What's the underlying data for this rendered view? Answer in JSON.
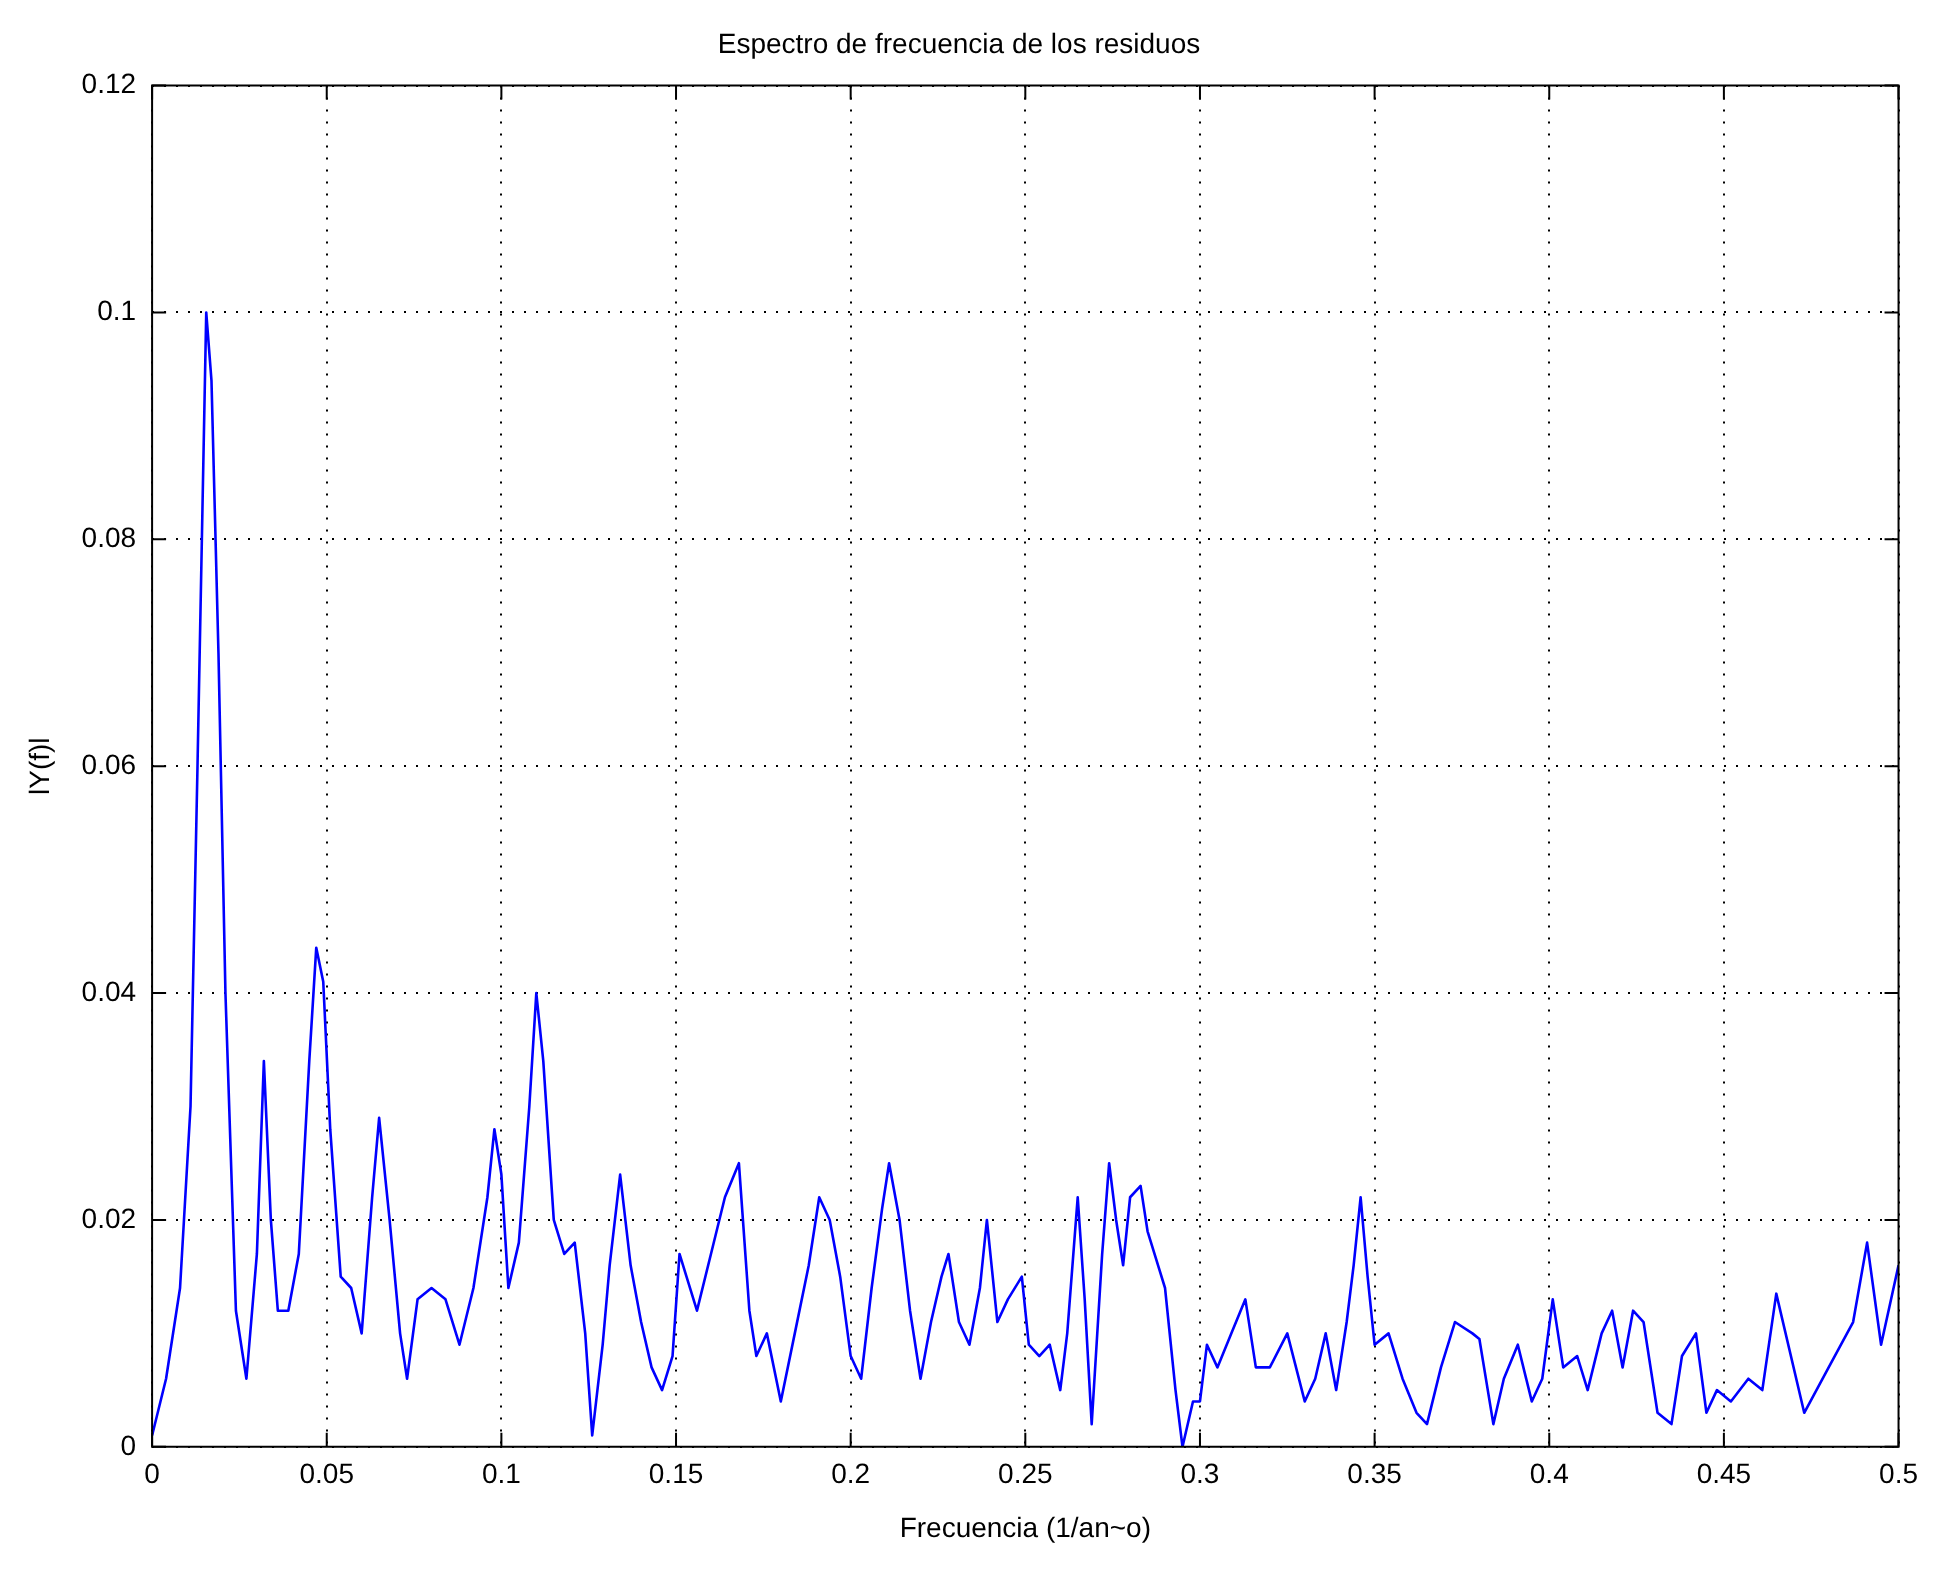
{
  "chart_data": {
    "type": "line",
    "title": "Espectro de frecuencia de los residuos",
    "xlabel": "Frecuencia (1/an~o)",
    "ylabel": "lY(f)l",
    "series": [
      {
        "color": "#0000ff",
        "x": [
          0,
          0.004,
          0.008,
          0.011,
          0.013,
          0.0155,
          0.017,
          0.019,
          0.021,
          0.024,
          0.027,
          0.03,
          0.032,
          0.034,
          0.036,
          0.039,
          0.042,
          0.045,
          0.047,
          0.049,
          0.051,
          0.054,
          0.057,
          0.06,
          0.063,
          0.065,
          0.068,
          0.071,
          0.073,
          0.076,
          0.08,
          0.084,
          0.088,
          0.092,
          0.096,
          0.098,
          0.1,
          0.102,
          0.105,
          0.108,
          0.11,
          0.112,
          0.115,
          0.118,
          0.121,
          0.124,
          0.126,
          0.129,
          0.131,
          0.134,
          0.137,
          0.14,
          0.143,
          0.146,
          0.149,
          0.151,
          0.153,
          0.156,
          0.16,
          0.164,
          0.168,
          0.171,
          0.173,
          0.176,
          0.18,
          0.184,
          0.188,
          0.191,
          0.194,
          0.197,
          0.2,
          0.203,
          0.206,
          0.209,
          0.211,
          0.214,
          0.217,
          0.22,
          0.223,
          0.226,
          0.228,
          0.231,
          0.234,
          0.237,
          0.239,
          0.242,
          0.245,
          0.249,
          0.251,
          0.254,
          0.257,
          0.26,
          0.262,
          0.265,
          0.267,
          0.269,
          0.272,
          0.274,
          0.276,
          0.278,
          0.28,
          0.283,
          0.285,
          0.29,
          0.293,
          0.295,
          0.298,
          0.3,
          0.302,
          0.305,
          0.309,
          0.313,
          0.316,
          0.32,
          0.325,
          0.33,
          0.333,
          0.336,
          0.339,
          0.342,
          0.344,
          0.346,
          0.348,
          0.35,
          0.354,
          0.358,
          0.362,
          0.365,
          0.369,
          0.373,
          0.378,
          0.38,
          0.384,
          0.387,
          0.391,
          0.395,
          0.398,
          0.401,
          0.404,
          0.408,
          0.411,
          0.415,
          0.418,
          0.421,
          0.424,
          0.427,
          0.431,
          0.435,
          0.438,
          0.442,
          0.445,
          0.448,
          0.452,
          0.457,
          0.461,
          0.465,
          0.473,
          0.48,
          0.487,
          0.491,
          0.495,
          0.5
        ],
        "values": [
          0.001,
          0.006,
          0.014,
          0.03,
          0.06,
          0.1,
          0.094,
          0.07,
          0.04,
          0.012,
          0.006,
          0.017,
          0.034,
          0.02,
          0.012,
          0.012,
          0.017,
          0.034,
          0.044,
          0.041,
          0.028,
          0.015,
          0.014,
          0.01,
          0.022,
          0.029,
          0.02,
          0.01,
          0.006,
          0.013,
          0.014,
          0.013,
          0.009,
          0.014,
          0.022,
          0.028,
          0.024,
          0.014,
          0.018,
          0.03,
          0.04,
          0.034,
          0.02,
          0.017,
          0.018,
          0.01,
          0.001,
          0.009,
          0.016,
          0.024,
          0.016,
          0.011,
          0.007,
          0.005,
          0.008,
          0.017,
          0.015,
          0.012,
          0.017,
          0.022,
          0.025,
          0.012,
          0.008,
          0.01,
          0.004,
          0.01,
          0.016,
          0.022,
          0.02,
          0.015,
          0.008,
          0.006,
          0.014,
          0.021,
          0.025,
          0.02,
          0.012,
          0.006,
          0.011,
          0.015,
          0.017,
          0.011,
          0.009,
          0.014,
          0.02,
          0.011,
          0.013,
          0.015,
          0.009,
          0.008,
          0.009,
          0.005,
          0.01,
          0.022,
          0.013,
          0.002,
          0.017,
          0.025,
          0.02,
          0.016,
          0.022,
          0.023,
          0.019,
          0.014,
          0.005,
          0,
          0.004,
          0.004,
          0.009,
          0.007,
          0.01,
          0.013,
          0.007,
          0.007,
          0.01,
          0.004,
          0.006,
          0.01,
          0.005,
          0.011,
          0.016,
          0.022,
          0.015,
          0.009,
          0.01,
          0.006,
          0.003,
          0.002,
          0.007,
          0.011,
          0.01,
          0.0095,
          0.002,
          0.006,
          0.009,
          0.004,
          0.006,
          0.013,
          0.007,
          0.008,
          0.005,
          0.01,
          0.012,
          0.007,
          0.012,
          0.011,
          0.003,
          0.002,
          0.008,
          0.01,
          0.003,
          0.005,
          0.004,
          0.006,
          0.005,
          0.0135,
          0.003,
          0.007,
          0.011,
          0.018,
          0.009,
          0.016
        ]
      }
    ],
    "xlim": [
      0,
      0.5
    ],
    "xticks": [
      0,
      0.05,
      0.1,
      0.15,
      0.2,
      0.25,
      0.3,
      0.35,
      0.4,
      0.45,
      0.5
    ],
    "ylim": [
      0,
      0.12
    ],
    "yticks": [
      0,
      0.02,
      0.04,
      0.06,
      0.08,
      0.1,
      0.12
    ],
    "grid": true,
    "legend": false,
    "marker": "none",
    "line_style": "solid"
  }
}
